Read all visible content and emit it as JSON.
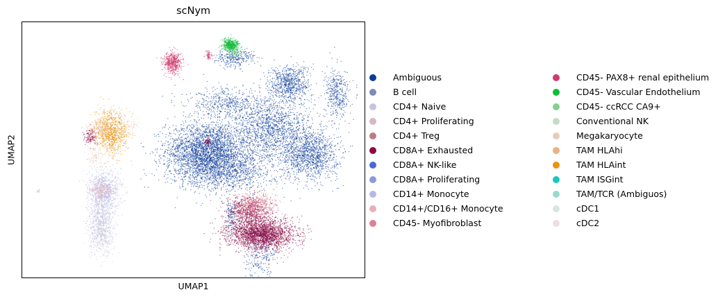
{
  "chart_data": {
    "type": "scatter",
    "title": "scNym",
    "xlabel": "UMAP1",
    "ylabel": "UMAP2",
    "grid": false,
    "legend_placement": "right-outside, two columns",
    "x_ticks": [],
    "y_ticks": [],
    "xlim": [
      0,
      100
    ],
    "ylim": [
      0,
      100
    ],
    "legend": [
      {
        "name": "Ambiguous",
        "color": "#0b3b99"
      },
      {
        "name": "B cell",
        "color": "#8189b8"
      },
      {
        "name": "CD4+ Naive",
        "color": "#c4c4df"
      },
      {
        "name": "CD4+ Proliferating",
        "color": "#d8b8c5"
      },
      {
        "name": "CD4+ Treg",
        "color": "#bd7b88"
      },
      {
        "name": "CD8A+ Exhausted",
        "color": "#8b0a43"
      },
      {
        "name": "CD8A+ NK-like",
        "color": "#4a69d8"
      },
      {
        "name": "CD8A+ Proliferating",
        "color": "#8c99de"
      },
      {
        "name": "CD14+ Monocyte",
        "color": "#b5b9e3"
      },
      {
        "name": "CD14+/CD16+ Monocyte",
        "color": "#e8aebb"
      },
      {
        "name": "CD45- Myofibroblast",
        "color": "#dd7f95"
      },
      {
        "name": "CD45- PAX8+ renal epithelium",
        "color": "#d03a6c"
      },
      {
        "name": "CD45- Vascular Endothelium",
        "color": "#12bb3a"
      },
      {
        "name": "CD45- ccRCC CA9+",
        "color": "#83d08e"
      },
      {
        "name": "Conventional NK",
        "color": "#c4dcc5"
      },
      {
        "name": "Megakaryocyte",
        "color": "#e8cbbd"
      },
      {
        "name": "TAM HLAhi",
        "color": "#ebb183"
      },
      {
        "name": "TAM HLAint",
        "color": "#e9920d"
      },
      {
        "name": "TAM ISGint",
        "color": "#13c8c0"
      },
      {
        "name": "TAM/TCR (Ambiguos)",
        "color": "#9ad9d0"
      },
      {
        "name": "cDC1",
        "color": "#d6e7e1"
      },
      {
        "name": "cDC2",
        "color": "#f0dce2"
      }
    ],
    "clusters": [
      {
        "label": "Ambiguous",
        "color": "#0b3b99",
        "center": [
          54,
          50
        ],
        "spread": [
          10,
          9
        ],
        "n": 2600
      },
      {
        "label": "Ambiguous",
        "color": "#0b3b99",
        "center": [
          73,
          58
        ],
        "spread": [
          10,
          10
        ],
        "n": 1500
      },
      {
        "label": "Ambiguous",
        "color": "#0b3b99",
        "center": [
          84,
          48
        ],
        "spread": [
          7,
          8
        ],
        "n": 1200
      },
      {
        "label": "Ambiguous",
        "color": "#0b3b99",
        "center": [
          78,
          76
        ],
        "spread": [
          5,
          6
        ],
        "n": 700
      },
      {
        "label": "Ambiguous",
        "color": "#0b3b99",
        "center": [
          92,
          72
        ],
        "spread": [
          3,
          8
        ],
        "n": 400
      },
      {
        "label": "Ambiguous",
        "color": "#0b3b99",
        "center": [
          59,
          42
        ],
        "spread": [
          12,
          7
        ],
        "n": 1300
      },
      {
        "label": "Ambiguous",
        "color": "#0b3b99",
        "center": [
          62,
          86
        ],
        "spread": [
          5,
          3
        ],
        "n": 280
      },
      {
        "label": "Ambiguous",
        "color": "#0b3b99",
        "center": [
          60,
          68
        ],
        "spread": [
          10,
          5
        ],
        "n": 500
      },
      {
        "label": "Ambiguous",
        "color": "#0b3b99",
        "center": [
          70,
          10
        ],
        "spread": [
          4,
          8
        ],
        "n": 260
      },
      {
        "label": "Ambiguous",
        "color": "#0b3b99",
        "center": [
          61,
          24
        ],
        "spread": [
          1.2,
          6
        ],
        "n": 120
      },
      {
        "label": "CD8A+ Exhausted",
        "color": "#8b0a43",
        "center": [
          70,
          17
        ],
        "spread": [
          8,
          5
        ],
        "n": 2300
      },
      {
        "label": "CD8A+ Exhausted",
        "color": "#8b0a43",
        "center": [
          66,
          26
        ],
        "spread": [
          5,
          5
        ],
        "n": 700
      },
      {
        "label": "CD8A+ Exhausted",
        "color": "#8b0a43",
        "center": [
          20,
          55
        ],
        "spread": [
          1.5,
          3
        ],
        "n": 120
      },
      {
        "label": "CD8A+ Exhausted",
        "color": "#8b0a43",
        "center": [
          54,
          53
        ],
        "spread": [
          0.8,
          1.2
        ],
        "n": 50
      },
      {
        "label": "CD45- Myofibroblast",
        "color": "#dd7f95",
        "center": [
          68,
          28
        ],
        "spread": [
          5,
          4
        ],
        "n": 500
      },
      {
        "label": "CD45- PAX8+ renal epithelium",
        "color": "#d03a6c",
        "center": [
          44,
          84
        ],
        "spread": [
          2.2,
          3.5
        ],
        "n": 520
      },
      {
        "label": "CD45- PAX8+ renal epithelium",
        "color": "#d03a6c",
        "center": [
          54.5,
          87
        ],
        "spread": [
          0.8,
          1.5
        ],
        "n": 60
      },
      {
        "label": "CD45- Vascular Endothelium",
        "color": "#12bb3a",
        "center": [
          61,
          91
        ],
        "spread": [
          2,
          2
        ],
        "n": 500
      },
      {
        "label": "CD45- ccRCC CA9+",
        "color": "#83d08e",
        "center": [
          62,
          88
        ],
        "spread": [
          1.8,
          1.5
        ],
        "n": 90
      },
      {
        "label": "TAM HLAint",
        "color": "#e9920d",
        "center": [
          26,
          57
        ],
        "spread": [
          4,
          7
        ],
        "n": 850
      },
      {
        "label": "TAM HLAhi",
        "color": "#ebb183",
        "center": [
          23,
          58
        ],
        "spread": [
          3,
          3
        ],
        "n": 180
      },
      {
        "label": "CD14+ Monocyte",
        "color": "#b5b9e3",
        "center": [
          24,
          34
        ],
        "spread": [
          4,
          7
        ],
        "n": 850
      },
      {
        "label": "CD4+ Naive",
        "color": "#c4c4df",
        "center": [
          23,
          20
        ],
        "spread": [
          3,
          9
        ],
        "n": 900
      },
      {
        "label": "CD14+/CD16+ Monocyte",
        "color": "#e8aebb",
        "center": [
          23,
          34
        ],
        "spread": [
          3,
          3
        ],
        "n": 200
      },
      {
        "label": "Megakaryocyte",
        "color": "#e8cbbd",
        "center": [
          21,
          47
        ],
        "spread": [
          2,
          3
        ],
        "n": 80
      },
      {
        "label": "cDC2",
        "color": "#f0dce2",
        "center": [
          32,
          60
        ],
        "spread": [
          3,
          2
        ],
        "n": 80
      },
      {
        "label": "CD4+ Naive",
        "color": "#c4c4df",
        "center": [
          4.8,
          34
        ],
        "spread": [
          0.3,
          0.6
        ],
        "n": 14
      }
    ]
  }
}
